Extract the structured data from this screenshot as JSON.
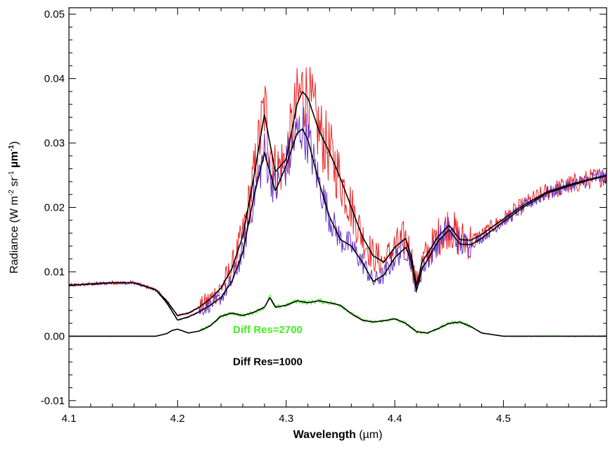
{
  "chart_data": {
    "type": "line",
    "title": "",
    "xlabel_bold": "Wavelength",
    "xlabel_unit": " (µm)",
    "ylabel_main": "Radiance (W m",
    "ylabel_exp1": "-2",
    "ylabel_mid": " sr",
    "ylabel_exp2": "-1",
    "ylabel_unit": " µm",
    "ylabel_exp3": "-1",
    "ylabel_close": ")",
    "xlim": [
      4.1,
      4.595
    ],
    "ylim": [
      -0.011,
      0.051
    ],
    "xticks": [
      4.1,
      4.2,
      4.3,
      4.4,
      4.5
    ],
    "xtick_labels": [
      "4.1",
      "4.2",
      "4.3",
      "4.4",
      "4.5"
    ],
    "yticks": [
      -0.01,
      0.0,
      0.01,
      0.02,
      0.03,
      0.04,
      0.05
    ],
    "ytick_labels": [
      "-0.01",
      "0.00",
      "0.01",
      "0.02",
      "0.03",
      "0.04",
      "0.05"
    ],
    "grid": false,
    "annotations": [
      {
        "text": "Diff Res=2700",
        "color": "#44ee22",
        "x": 4.283,
        "y": 0.0005
      },
      {
        "text": "Diff Res=1000",
        "color": "#000000",
        "x": 4.283,
        "y": -0.0045
      }
    ],
    "series": [
      {
        "color": "#ee2222",
        "style": "noisy-high",
        "noise": 0.0048,
        "x": [
          4.1,
          4.12,
          4.14,
          4.16,
          4.18,
          4.19,
          4.2,
          4.21,
          4.22,
          4.23,
          4.24,
          4.25,
          4.26,
          4.27,
          4.28,
          4.29,
          4.3,
          4.31,
          4.315,
          4.32,
          4.33,
          4.34,
          4.35,
          4.36,
          4.37,
          4.38,
          4.39,
          4.4,
          4.41,
          4.415,
          4.42,
          4.425,
          4.43,
          4.44,
          4.45,
          4.46,
          4.47,
          4.48,
          4.5,
          4.52,
          4.54,
          4.56,
          4.58,
          4.595
        ],
        "y": [
          0.0079,
          0.0081,
          0.0083,
          0.0083,
          0.0072,
          0.0055,
          0.0032,
          0.0036,
          0.0045,
          0.0058,
          0.0075,
          0.0105,
          0.0155,
          0.0245,
          0.0355,
          0.0255,
          0.0275,
          0.036,
          0.0385,
          0.037,
          0.032,
          0.0285,
          0.0245,
          0.02,
          0.0155,
          0.0125,
          0.0115,
          0.0138,
          0.0152,
          0.0125,
          0.0078,
          0.0115,
          0.0128,
          0.0155,
          0.0172,
          0.015,
          0.0149,
          0.0158,
          0.0182,
          0.0205,
          0.0224,
          0.0235,
          0.0244,
          0.025
        ]
      },
      {
        "color": "#6633cc",
        "style": "noisy-low",
        "noise": 0.0034,
        "x": [
          4.1,
          4.12,
          4.14,
          4.16,
          4.18,
          4.19,
          4.2,
          4.21,
          4.22,
          4.23,
          4.24,
          4.25,
          4.26,
          4.27,
          4.28,
          4.29,
          4.3,
          4.31,
          4.315,
          4.32,
          4.33,
          4.34,
          4.35,
          4.36,
          4.37,
          4.38,
          4.39,
          4.4,
          4.41,
          4.415,
          4.42,
          4.425,
          4.43,
          4.44,
          4.45,
          4.46,
          4.47,
          4.48,
          4.5,
          4.52,
          4.54,
          4.56,
          4.58,
          4.595
        ],
        "y": [
          0.0079,
          0.0081,
          0.0083,
          0.0083,
          0.0072,
          0.0052,
          0.0025,
          0.003,
          0.0038,
          0.0048,
          0.006,
          0.0085,
          0.013,
          0.0215,
          0.0285,
          0.0225,
          0.0265,
          0.0315,
          0.0325,
          0.0305,
          0.024,
          0.0185,
          0.015,
          0.014,
          0.0115,
          0.0085,
          0.0095,
          0.0122,
          0.0138,
          0.0118,
          0.007,
          0.0105,
          0.0118,
          0.0148,
          0.0165,
          0.0143,
          0.0142,
          0.0152,
          0.0178,
          0.0202,
          0.0222,
          0.0233,
          0.0243,
          0.0249
        ]
      },
      {
        "color": "#000000",
        "style": "smooth-high",
        "x": [
          4.1,
          4.12,
          4.14,
          4.16,
          4.18,
          4.19,
          4.2,
          4.21,
          4.22,
          4.23,
          4.24,
          4.25,
          4.26,
          4.27,
          4.28,
          4.29,
          4.3,
          4.31,
          4.315,
          4.32,
          4.33,
          4.34,
          4.35,
          4.36,
          4.37,
          4.38,
          4.39,
          4.4,
          4.41,
          4.415,
          4.42,
          4.425,
          4.43,
          4.44,
          4.45,
          4.46,
          4.47,
          4.48,
          4.5,
          4.52,
          4.54,
          4.56,
          4.58,
          4.595
        ],
        "y": [
          0.0079,
          0.0081,
          0.0083,
          0.0083,
          0.0072,
          0.0055,
          0.0032,
          0.0036,
          0.0045,
          0.0058,
          0.0075,
          0.0105,
          0.0155,
          0.0245,
          0.0345,
          0.0255,
          0.0275,
          0.036,
          0.038,
          0.037,
          0.032,
          0.0285,
          0.0245,
          0.02,
          0.0155,
          0.0125,
          0.0115,
          0.0138,
          0.0152,
          0.0125,
          0.0078,
          0.0115,
          0.0128,
          0.0155,
          0.0172,
          0.015,
          0.0149,
          0.0158,
          0.0182,
          0.0205,
          0.0224,
          0.0235,
          0.0244,
          0.025
        ]
      },
      {
        "color": "#000000",
        "style": "smooth-low",
        "x": [
          4.1,
          4.12,
          4.14,
          4.16,
          4.18,
          4.19,
          4.2,
          4.21,
          4.22,
          4.23,
          4.24,
          4.25,
          4.26,
          4.27,
          4.28,
          4.29,
          4.3,
          4.31,
          4.315,
          4.32,
          4.33,
          4.34,
          4.35,
          4.36,
          4.37,
          4.38,
          4.39,
          4.4,
          4.41,
          4.415,
          4.42,
          4.425,
          4.43,
          4.44,
          4.45,
          4.46,
          4.47,
          4.48,
          4.5,
          4.52,
          4.54,
          4.56,
          4.58,
          4.595
        ],
        "y": [
          0.0079,
          0.0081,
          0.0083,
          0.0083,
          0.0072,
          0.0052,
          0.0025,
          0.003,
          0.0038,
          0.0048,
          0.006,
          0.0085,
          0.013,
          0.0215,
          0.0285,
          0.0225,
          0.0265,
          0.0315,
          0.0322,
          0.0305,
          0.024,
          0.0185,
          0.015,
          0.014,
          0.0115,
          0.0085,
          0.0095,
          0.0122,
          0.0138,
          0.0118,
          0.007,
          0.0105,
          0.0118,
          0.0148,
          0.0165,
          0.0143,
          0.0142,
          0.0152,
          0.0178,
          0.0202,
          0.0222,
          0.0233,
          0.0243,
          0.0249
        ]
      },
      {
        "color": "#44ee22",
        "style": "diff-noisy",
        "noise": 0.0011,
        "x": [
          4.1,
          4.15,
          4.18,
          4.19,
          4.195,
          4.2,
          4.21,
          4.22,
          4.23,
          4.24,
          4.25,
          4.26,
          4.27,
          4.28,
          4.285,
          4.29,
          4.3,
          4.31,
          4.32,
          4.33,
          4.34,
          4.35,
          4.36,
          4.37,
          4.38,
          4.39,
          4.4,
          4.41,
          4.42,
          4.43,
          4.44,
          4.45,
          4.46,
          4.47,
          4.48,
          4.5,
          4.55,
          4.595
        ],
        "y": [
          0.0,
          0.0,
          0.0,
          0.0004,
          0.0009,
          0.0011,
          0.0005,
          0.0008,
          0.0016,
          0.0031,
          0.0036,
          0.0032,
          0.0037,
          0.0045,
          0.0062,
          0.0045,
          0.0048,
          0.0055,
          0.0052,
          0.0055,
          0.0052,
          0.0048,
          0.0035,
          0.0025,
          0.0022,
          0.0024,
          0.0027,
          0.002,
          0.0007,
          0.0005,
          0.0012,
          0.002,
          0.0022,
          0.0015,
          0.0005,
          0.0,
          0.0,
          0.0
        ]
      },
      {
        "color": "#000000",
        "style": "diff-smooth",
        "x": [
          4.1,
          4.15,
          4.18,
          4.19,
          4.195,
          4.2,
          4.21,
          4.22,
          4.23,
          4.24,
          4.25,
          4.26,
          4.27,
          4.28,
          4.285,
          4.29,
          4.3,
          4.31,
          4.32,
          4.33,
          4.34,
          4.35,
          4.36,
          4.37,
          4.38,
          4.39,
          4.4,
          4.41,
          4.42,
          4.43,
          4.44,
          4.45,
          4.46,
          4.47,
          4.48,
          4.5,
          4.55,
          4.595
        ],
        "y": [
          0.0,
          0.0,
          0.0,
          0.0004,
          0.0009,
          0.0011,
          0.0005,
          0.0008,
          0.0016,
          0.0031,
          0.0036,
          0.0032,
          0.0037,
          0.0045,
          0.006,
          0.0045,
          0.0048,
          0.0055,
          0.0052,
          0.0055,
          0.0052,
          0.0048,
          0.0035,
          0.0025,
          0.0022,
          0.0024,
          0.0027,
          0.002,
          0.0007,
          0.0005,
          0.0012,
          0.002,
          0.0022,
          0.0015,
          0.0005,
          0.0,
          0.0,
          0.0
        ]
      }
    ]
  }
}
